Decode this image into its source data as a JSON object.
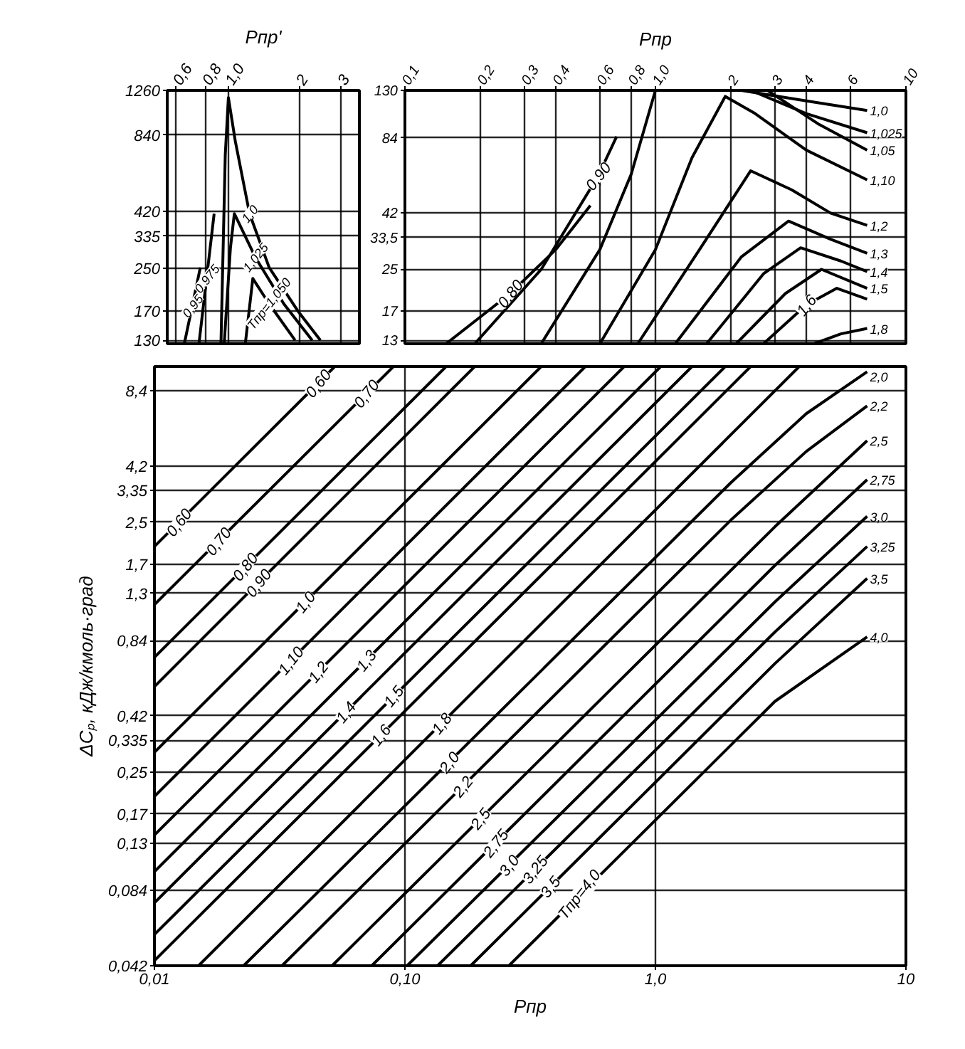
{
  "chart_data": [
    {
      "type": "line",
      "log": "xy",
      "grid": true,
      "xlabel": "Pпр'",
      "xlim": [
        0.55,
        3.6
      ],
      "ylim": [
        126,
        1260
      ],
      "xticks": [
        {
          "value": 0.6,
          "label": "0,6"
        },
        {
          "value": 0.8,
          "label": "0,8"
        },
        {
          "value": 1,
          "label": "1,0"
        },
        2,
        3
      ],
      "yticks": [
        130,
        170,
        250,
        335,
        420,
        840,
        1260
      ],
      "series": [
        {
          "color": "#000000",
          "x": [
            0.65,
            0.76
          ],
          "values": [
            126,
            252
          ]
        },
        {
          "color": "#000000",
          "x": [
            0.75,
            0.87
          ],
          "values": [
            126,
            411
          ]
        },
        {
          "color": "#000000",
          "x": [
            0.93,
            0.97,
            1.0,
            1.07,
            1.23,
            1.49,
            1.97,
            2.46
          ],
          "values": [
            126,
            700,
            1180,
            794,
            411,
            252,
            170,
            130
          ]
        },
        {
          "color": "#000000",
          "x": [
            0.96,
            1.02,
            1.06,
            1.3,
            1.72,
            2.27
          ],
          "values": [
            126,
            300,
            411,
            277,
            181,
            130
          ]
        },
        {
          "color": "#000000",
          "x": [
            1.18,
            1.27,
            1.49,
            1.92
          ],
          "values": [
            126,
            228,
            181,
            130
          ]
        }
      ],
      "annotations": [
        {
          "text": "0,95",
          "x": 0.703,
          "y": 178
        },
        {
          "text": "0,975",
          "x": 0.808,
          "y": 228
        },
        {
          "text": "1,0",
          "x": 1.23,
          "y": 411
        },
        {
          "text": "1,025",
          "x": 1.3,
          "y": 277
        },
        {
          "text": "Tпр=1,050",
          "x": 1.49,
          "y": 181
        }
      ]
    },
    {
      "type": "line",
      "log": "xy",
      "grid": true,
      "xlabel": "Pпр",
      "xlim": [
        0.1,
        10
      ],
      "ylim": [
        12.6,
        130
      ],
      "xticks": [
        {
          "value": 0.1,
          "label": "0,1"
        },
        {
          "value": 0.2,
          "label": "0,2"
        },
        {
          "value": 0.3,
          "label": "0,3"
        },
        {
          "value": 0.4,
          "label": "0,4"
        },
        {
          "value": 0.6,
          "label": "0,6"
        },
        {
          "value": 0.8,
          "label": "0,8"
        },
        {
          "value": 1,
          "label": "1,0"
        },
        2,
        3,
        4,
        6,
        10
      ],
      "yticks": [
        13,
        17,
        25,
        {
          "value": 33.5,
          "label": "33,5"
        },
        42,
        84,
        130
      ],
      "series": [
        {
          "color": "#000000",
          "x": [
            0.146,
            0.263,
            0.4,
            0.55
          ],
          "values": [
            12.6,
            20,
            30,
            45
          ]
        },
        {
          "color": "#000000",
          "x": [
            0.19,
            0.35,
            0.59,
            0.7
          ],
          "values": [
            12.6,
            25,
            59,
            85
          ]
        },
        {
          "color": "#000000",
          "x": [
            0.35,
            0.6,
            0.8,
            1.0,
            1.5,
            2.2,
            4,
            7
          ],
          "values": [
            12.6,
            30,
            60,
            130,
            null,
            130,
            118,
            108
          ]
        },
        {
          "color": "#000000",
          "x": [
            2.4,
            4,
            7
          ],
          "values": [
            130,
            105,
            88
          ]
        },
        {
          "color": "#000000",
          "x": [
            2.8,
            4.5,
            7
          ],
          "values": [
            130,
            95,
            75
          ]
        },
        {
          "color": "#000000",
          "x": [
            0.6,
            1.0,
            1.4,
            1.9,
            2.5,
            4,
            7
          ],
          "values": [
            12.6,
            30,
            70,
            123,
            105,
            75,
            57
          ]
        },
        {
          "color": "#000000",
          "x": [
            0.85,
            1.5,
            2.4,
            3.5,
            5,
            7
          ],
          "values": [
            12.6,
            30,
            62,
            52,
            42,
            37.5
          ]
        },
        {
          "color": "#000000",
          "x": [
            1.2,
            2.2,
            3.4,
            5,
            7
          ],
          "values": [
            12.6,
            28,
            39,
            33,
            29
          ]
        },
        {
          "color": "#000000",
          "x": [
            1.6,
            2.7,
            3.8,
            5.5,
            7
          ],
          "values": [
            12.6,
            24,
            30.5,
            27,
            24.5
          ]
        },
        {
          "color": "#000000",
          "x": [
            2.1,
            3.3,
            4.6,
            7
          ],
          "values": [
            12.6,
            20,
            25,
            21
          ]
        },
        {
          "color": "#000000",
          "x": [
            2.7,
            4,
            5.3,
            7
          ],
          "values": [
            12.6,
            18,
            21,
            19
          ]
        },
        {
          "color": "#000000",
          "x": [
            4.3,
            5.5,
            7
          ],
          "values": [
            12.6,
            13.8,
            14.5
          ]
        }
      ],
      "annotations": [
        {
          "text": "0,80",
          "x": 0.263,
          "y": 20
        },
        {
          "text": "0,90",
          "x": 0.59,
          "y": 59
        },
        {
          "text": "1,6",
          "x": 4,
          "y": 18
        },
        {
          "text": "1,0",
          "x": 7,
          "y": 108
        },
        {
          "text": "1,025",
          "x": 7,
          "y": 88
        },
        {
          "text": "1,05",
          "x": 7,
          "y": 75
        },
        {
          "text": "1,10",
          "x": 7,
          "y": 57
        },
        {
          "text": "1,2",
          "x": 7,
          "y": 37.5
        },
        {
          "text": "1,3",
          "x": 7,
          "y": 29
        },
        {
          "text": "1,4",
          "x": 7,
          "y": 24.5
        },
        {
          "text": "1,5",
          "x": 7,
          "y": 21
        },
        {
          "text": "1,8",
          "x": 7,
          "y": 14.5
        }
      ]
    },
    {
      "type": "line",
      "log": "xy",
      "grid": true,
      "xlabel": "Pпр",
      "ylabel": "ΔCₚ, кДж/кмоль·град",
      "xlim": [
        0.01,
        10
      ],
      "ylim": [
        0.042,
        10.5
      ],
      "xticks": [
        {
          "value": 0.01,
          "label": "0,01"
        },
        {
          "value": 0.1,
          "label": "0,10"
        },
        {
          "value": 1,
          "label": "1,0"
        },
        10
      ],
      "yticks": [
        {
          "value": 0.042,
          "label": "0,042"
        },
        {
          "value": 0.084,
          "label": "0,084"
        },
        {
          "value": 0.13,
          "label": "0,13"
        },
        {
          "value": 0.17,
          "label": "0,17"
        },
        {
          "value": 0.25,
          "label": "0,25"
        },
        {
          "value": 0.335,
          "label": "0,335"
        },
        {
          "value": 0.42,
          "label": "0,42"
        },
        {
          "value": 0.84,
          "label": "0,84"
        },
        {
          "value": 1.3,
          "label": "1,3"
        },
        {
          "value": 1.7,
          "label": "1,7"
        },
        {
          "value": 2.5,
          "label": "2,5"
        },
        {
          "value": 3.35,
          "label": "3,35"
        },
        {
          "value": 4.2,
          "label": "4,2"
        },
        {
          "value": 8.4,
          "label": "8,4"
        }
      ],
      "series": [
        {
          "color": "#000000",
          "x": [
            0.01,
            0.0525
          ],
          "values": [
            2.0,
            10.5
          ]
        },
        {
          "color": "#000000",
          "x": [
            0.01,
            0.09
          ],
          "values": [
            1.17,
            10.5
          ]
        },
        {
          "color": "#000000",
          "x": [
            0.01,
            0.146
          ],
          "values": [
            0.72,
            10.5
          ]
        },
        {
          "color": "#000000",
          "x": [
            0.01,
            0.19
          ],
          "values": [
            0.55,
            10.5
          ]
        },
        {
          "color": "#000000",
          "x": [
            0.01,
            0.35
          ],
          "values": [
            0.3,
            10.5
          ]
        },
        {
          "color": "#000000",
          "x": [
            0.01,
            0.525
          ],
          "values": [
            0.2,
            10.5
          ]
        },
        {
          "color": "#000000",
          "x": [
            0.01,
            0.75
          ],
          "values": [
            0.14,
            10.5
          ]
        },
        {
          "color": "#000000",
          "x": [
            0.01,
            1.05
          ],
          "values": [
            0.1,
            10.5
          ]
        },
        {
          "color": "#000000",
          "x": [
            0.01,
            1.4
          ],
          "values": [
            0.075,
            10.5
          ]
        },
        {
          "color": "#000000",
          "x": [
            0.01,
            1.9
          ],
          "values": [
            0.056,
            10.5
          ]
        },
        {
          "color": "#000000",
          "x": [
            0.01,
            2.4
          ],
          "values": [
            0.044,
            10.5
          ]
        },
        {
          "color": "#000000",
          "x": [
            0.015,
            3.75
          ],
          "values": [
            0.042,
            10.5
          ]
        },
        {
          "color": "#000000",
          "x": [
            0.0227,
            2,
            4,
            7
          ],
          "values": [
            0.042,
            3.6,
            6.8,
            10
          ]
        },
        {
          "color": "#000000",
          "x": [
            0.0323,
            2,
            4,
            7
          ],
          "values": [
            0.042,
            2.55,
            4.8,
            7.3
          ]
        },
        {
          "color": "#000000",
          "x": [
            0.0512,
            3,
            7
          ],
          "values": [
            0.042,
            2.4,
            5.3
          ]
        },
        {
          "color": "#000000",
          "x": [
            0.0737,
            3,
            7
          ],
          "values": [
            0.042,
            1.68,
            3.7
          ]
        },
        {
          "color": "#000000",
          "x": [
            0.102,
            3,
            7
          ],
          "values": [
            0.042,
            1.2,
            2.64
          ]
        },
        {
          "color": "#000000",
          "x": [
            0.135,
            3,
            7
          ],
          "values": [
            0.042,
            0.91,
            2.0
          ]
        },
        {
          "color": "#000000",
          "x": [
            0.183,
            3,
            7
          ],
          "values": [
            0.042,
            0.68,
            1.49
          ]
        },
        {
          "color": "#000000",
          "x": [
            0.26,
            3,
            7
          ],
          "values": [
            0.042,
            0.48,
            0.87
          ]
        }
      ],
      "annotations": [
        {
          "text": "0,60",
          "x": 0.0125,
          "y": 2.5
        },
        {
          "text": "0,70",
          "x": 0.018,
          "y": 2.1
        },
        {
          "text": "0,80",
          "x": 0.023,
          "y": 1.66
        },
        {
          "text": "0,90",
          "x": 0.026,
          "y": 1.43
        },
        {
          "text": "1,0",
          "x": 0.04,
          "y": 1.2
        },
        {
          "text": "1,10",
          "x": 0.035,
          "y": 0.7
        },
        {
          "text": "1,2",
          "x": 0.045,
          "y": 0.63
        },
        {
          "text": "1,3",
          "x": 0.07,
          "y": 0.7
        },
        {
          "text": "1,4",
          "x": 0.058,
          "y": 0.435
        },
        {
          "text": "1,5",
          "x": 0.09,
          "y": 0.504
        },
        {
          "text": "1,6",
          "x": 0.08,
          "y": 0.352
        },
        {
          "text": "1,8",
          "x": 0.14,
          "y": 0.392
        },
        {
          "text": "2,0",
          "x": 0.15,
          "y": 0.274
        },
        {
          "text": "2,2",
          "x": 0.17,
          "y": 0.219
        },
        {
          "text": "2,5",
          "x": 0.2,
          "y": 0.163
        },
        {
          "text": "2,75",
          "x": 0.23,
          "y": 0.13
        },
        {
          "text": "3,0",
          "x": 0.26,
          "y": 0.106
        },
        {
          "text": "3,25",
          "x": 0.33,
          "y": 0.102
        },
        {
          "text": "3,5",
          "x": 0.38,
          "y": 0.087
        },
        {
          "text": "Tпр=4,0",
          "x": 0.5,
          "y": 0.0806
        },
        {
          "text": "0,60",
          "x": 0.045,
          "y": 9.0
        },
        {
          "text": "0,70",
          "x": 0.07,
          "y": 8.19
        },
        {
          "text": "2,0",
          "x": 7,
          "y": 10
        },
        {
          "text": "2,2",
          "x": 7,
          "y": 7.3
        },
        {
          "text": "2,5",
          "x": 7,
          "y": 5.3
        },
        {
          "text": "2,75",
          "x": 7,
          "y": 3.7
        },
        {
          "text": "3,0",
          "x": 7,
          "y": 2.64
        },
        {
          "text": "3,25",
          "x": 7,
          "y": 2.0
        },
        {
          "text": "3,5",
          "x": 7,
          "y": 1.49
        },
        {
          "text": "4,0",
          "x": 7,
          "y": 0.87
        }
      ]
    }
  ]
}
